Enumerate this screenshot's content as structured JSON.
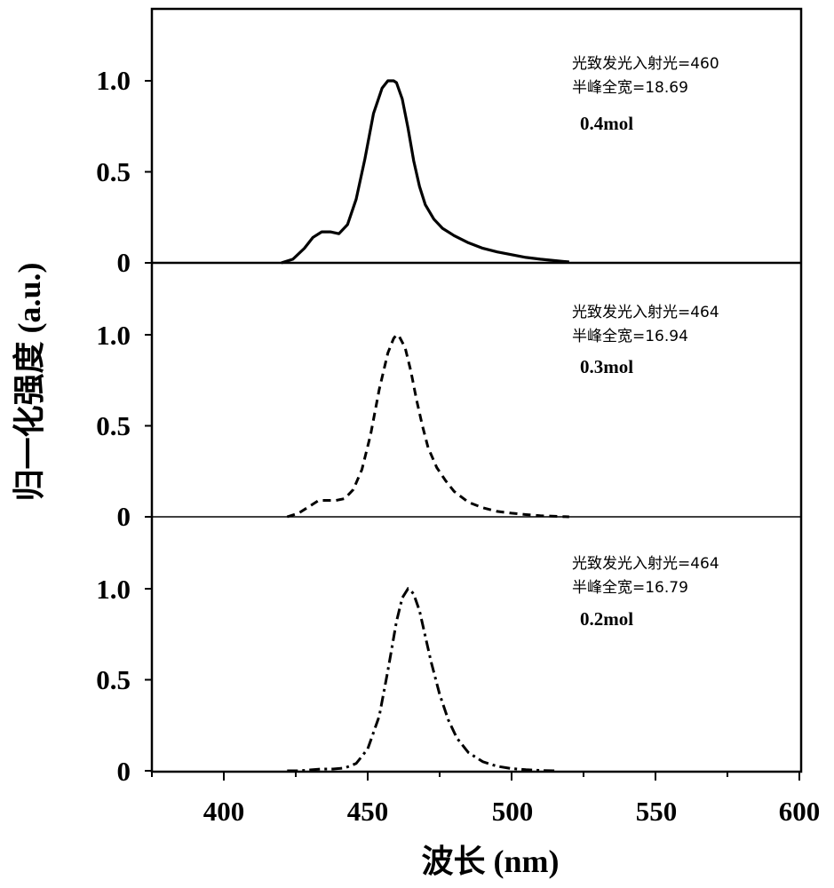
{
  "chart_data": {
    "type": "line",
    "xlabel": "波长 (nm)",
    "ylabel": "归一化强度 (a.u.)",
    "xlim": [
      375,
      600
    ],
    "x_ticks": [
      "400",
      "450",
      "500",
      "550",
      "600"
    ],
    "y_ticks": [
      "0",
      "0.5",
      "1.0"
    ],
    "ylim": [
      0,
      1.35
    ],
    "panels": [
      {
        "name": "0.4mol",
        "annotation_line1": "光致发光入射光=460",
        "annotation_line2": "半峰全宽=18.69",
        "label": "0.4mol",
        "line_style": "solid",
        "x": [
          420,
          424,
          428,
          431,
          434,
          437,
          440,
          443,
          446,
          449,
          452,
          455,
          457,
          459,
          460,
          462,
          464,
          466,
          468,
          470,
          473,
          476,
          480,
          485,
          490,
          495,
          500,
          505,
          510,
          515,
          520
        ],
        "y": [
          0.0,
          0.02,
          0.08,
          0.14,
          0.17,
          0.17,
          0.16,
          0.21,
          0.35,
          0.57,
          0.82,
          0.96,
          1.0,
          1.0,
          0.99,
          0.9,
          0.74,
          0.56,
          0.42,
          0.32,
          0.24,
          0.19,
          0.15,
          0.11,
          0.08,
          0.06,
          0.045,
          0.03,
          0.02,
          0.012,
          0.005
        ]
      },
      {
        "name": "0.3mol",
        "annotation_line1": "光致发光入射光=464",
        "annotation_line2": "半峰全宽=16.94",
        "label": "0.3mol",
        "line_style": "dashed",
        "x": [
          422,
          426,
          430,
          433,
          436,
          439,
          442,
          445,
          448,
          451,
          454,
          457,
          459,
          460,
          461,
          463,
          465,
          467,
          469,
          471,
          474,
          477,
          480,
          485,
          490,
          495,
          500,
          505,
          510,
          515,
          520
        ],
        "y": [
          0.0,
          0.02,
          0.06,
          0.09,
          0.09,
          0.09,
          0.1,
          0.15,
          0.26,
          0.45,
          0.7,
          0.9,
          0.98,
          1.0,
          0.99,
          0.93,
          0.8,
          0.64,
          0.5,
          0.38,
          0.27,
          0.2,
          0.14,
          0.08,
          0.05,
          0.03,
          0.02,
          0.012,
          0.006,
          0.003,
          0.0
        ]
      },
      {
        "name": "0.2mol",
        "annotation_line1": "光致发光入射光=464",
        "annotation_line2": "半峰全宽=16.79",
        "label": "0.2mol",
        "line_style": "dashdot",
        "x": [
          422,
          426,
          430,
          434,
          438,
          442,
          446,
          450,
          454,
          457,
          460,
          462,
          464,
          465,
          466,
          468,
          470,
          472,
          475,
          478,
          481,
          485,
          490,
          495,
          500,
          505,
          510,
          515
        ],
        "y": [
          0.0,
          0.0,
          0.005,
          0.01,
          0.01,
          0.015,
          0.04,
          0.12,
          0.3,
          0.55,
          0.82,
          0.95,
          1.0,
          0.99,
          0.97,
          0.88,
          0.74,
          0.6,
          0.42,
          0.28,
          0.18,
          0.1,
          0.05,
          0.025,
          0.012,
          0.006,
          0.002,
          0.0
        ]
      }
    ]
  }
}
